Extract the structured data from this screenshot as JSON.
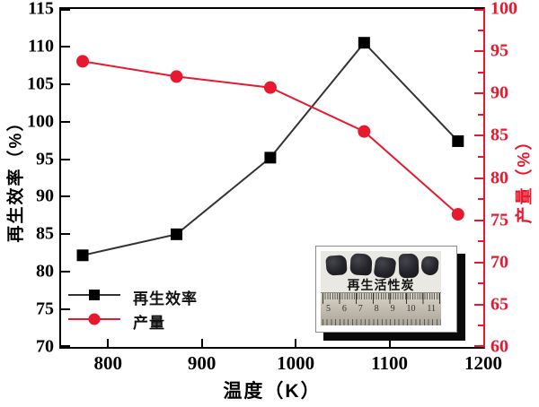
{
  "chart_data": {
    "type": "line",
    "x": [
      773,
      873,
      973,
      1073,
      1173
    ],
    "series": [
      {
        "name": "再生效率",
        "axis": "left",
        "values": [
          82.2,
          85.0,
          95.2,
          110.5,
          97.4
        ],
        "line_color": "#333333",
        "marker": "square",
        "marker_color": "#000000"
      },
      {
        "name": "产量",
        "axis": "right",
        "values": [
          93.8,
          92.0,
          90.7,
          85.5,
          75.7
        ],
        "line_color": "#e8192e",
        "marker": "circle",
        "marker_color": "#e8192e"
      }
    ],
    "xlabel": "温度（K）",
    "ylabel_left": "再生效率（%）",
    "ylabel_right": "产量（%）",
    "x_range": [
      750,
      1200
    ],
    "x_ticks": [
      800,
      900,
      1000,
      1100,
      1200
    ],
    "ylim_left": [
      70,
      115
    ],
    "yticks_left": [
      70,
      75,
      80,
      85,
      90,
      95,
      100,
      105,
      110,
      115
    ],
    "ylim_right": [
      60,
      100
    ],
    "yticks_right": [
      60,
      65,
      70,
      75,
      80,
      85,
      90,
      95,
      100
    ],
    "minor_step_right": 2.5,
    "grid": false,
    "legend_position": "bottom-left"
  },
  "legend": {
    "items": [
      {
        "label": "再生效率"
      },
      {
        "label": "产量"
      }
    ]
  },
  "inset": {
    "caption": "再生活性炭",
    "ruler_numbers": [
      "5",
      "6",
      "7",
      "8",
      "9",
      "10",
      "11"
    ]
  },
  "colors": {
    "efficiency_line": "#333333",
    "efficiency_marker": "#000000",
    "yield": "#e8192e",
    "axis_left": "#000000",
    "axis_right": "#e8192e",
    "background": "#ffffff"
  }
}
